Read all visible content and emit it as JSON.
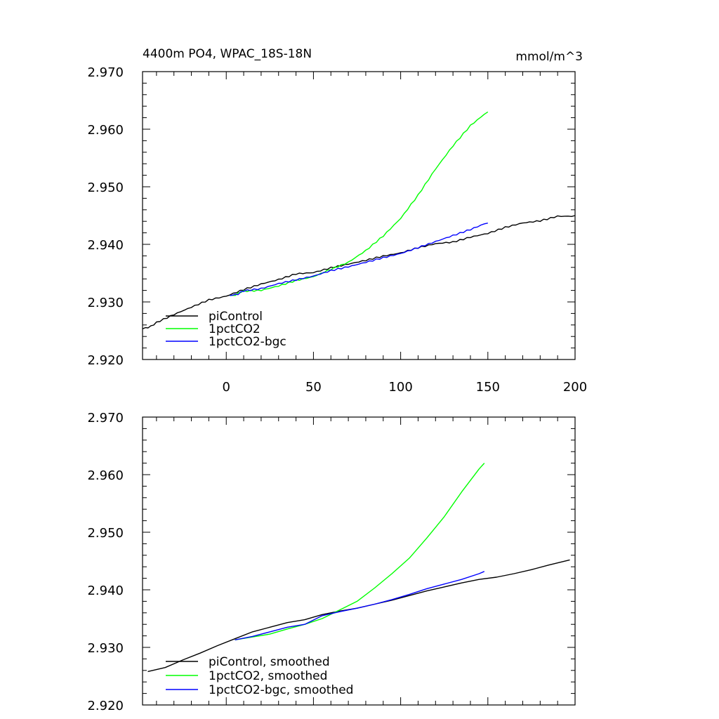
{
  "chart_data": [
    {
      "type": "line",
      "title": "4400m PO4, WPAC_18S-18N",
      "units": "mmol/m^3",
      "xlim": [
        -48,
        200
      ],
      "ylim": [
        2.92,
        2.97
      ],
      "xticks": [
        0,
        50,
        100,
        150,
        200
      ],
      "xtick_labels": [
        "0",
        "50",
        "100",
        "150",
        "200"
      ],
      "yticks": [
        2.92,
        2.93,
        2.94,
        2.95,
        2.96,
        2.97
      ],
      "ytick_labels": [
        "2.920",
        "2.930",
        "2.940",
        "2.950",
        "2.960",
        "2.970"
      ],
      "grid": false,
      "legend": "bottom-left",
      "series": [
        {
          "name": "piControl",
          "color": "#000000",
          "x": [
            -48,
            -40,
            -30,
            -20,
            -10,
            0,
            10,
            20,
            30,
            40,
            50,
            60,
            70,
            80,
            90,
            100,
            110,
            120,
            130,
            140,
            150,
            160,
            170,
            180,
            190,
            200
          ],
          "y": [
            2.9252,
            2.9263,
            2.9277,
            2.929,
            2.9303,
            2.931,
            2.9322,
            2.9332,
            2.934,
            2.935,
            2.9352,
            2.936,
            2.9366,
            2.9372,
            2.9379,
            2.9384,
            2.9393,
            2.94,
            2.9403,
            2.9412,
            2.9419,
            2.943,
            2.9438,
            2.9442,
            2.945,
            2.945
          ]
        },
        {
          "name": "1pctCO2",
          "color": "#00ff00",
          "x": [
            2,
            10,
            20,
            30,
            40,
            50,
            60,
            70,
            80,
            90,
            100,
            110,
            120,
            130,
            140,
            150
          ],
          "y": [
            2.931,
            2.9318,
            2.932,
            2.9328,
            2.9338,
            2.9345,
            2.9358,
            2.937,
            2.939,
            2.9415,
            2.9445,
            2.9485,
            2.953,
            2.957,
            2.9605,
            2.963
          ]
        },
        {
          "name": "1pctCO2-bgc",
          "color": "#0000ff",
          "x": [
            2,
            10,
            20,
            30,
            40,
            50,
            60,
            70,
            80,
            90,
            100,
            110,
            120,
            130,
            140,
            150
          ],
          "y": [
            2.931,
            2.9318,
            2.9322,
            2.9331,
            2.9338,
            2.9345,
            2.9355,
            2.9362,
            2.937,
            2.9378,
            2.9385,
            2.9395,
            2.9405,
            2.9415,
            2.9425,
            2.9437
          ]
        }
      ]
    },
    {
      "type": "line",
      "xlim": [
        -48,
        200
      ],
      "ylim": [
        2.92,
        2.97
      ],
      "xticks": [
        0,
        50,
        100,
        150,
        200
      ],
      "yticks": [
        2.92,
        2.93,
        2.94,
        2.95,
        2.96,
        2.97
      ],
      "ytick_labels": [
        "2.920",
        "2.930",
        "2.940",
        "2.950",
        "2.960",
        "2.970"
      ],
      "grid": false,
      "legend": "bottom-left",
      "series": [
        {
          "name": "piControl, smoothed",
          "color": "#000000",
          "x": [
            -45,
            -35,
            -25,
            -15,
            -5,
            5,
            15,
            25,
            35,
            45,
            55,
            65,
            75,
            85,
            95,
            105,
            115,
            125,
            135,
            145,
            155,
            165,
            175,
            185,
            197
          ],
          "y": [
            2.9258,
            2.9265,
            2.9278,
            2.929,
            2.9303,
            2.9315,
            2.9327,
            2.9335,
            2.9343,
            2.9348,
            2.9357,
            2.9363,
            2.9368,
            2.9375,
            2.9382,
            2.939,
            2.9398,
            2.9405,
            2.9412,
            2.9418,
            2.9422,
            2.9428,
            2.9435,
            2.9443,
            2.9452
          ]
        },
        {
          "name": "1pctCO2, smoothed",
          "color": "#00ff00",
          "x": [
            5,
            15,
            25,
            35,
            45,
            55,
            65,
            75,
            85,
            95,
            105,
            115,
            125,
            135,
            145,
            148
          ],
          "y": [
            2.9313,
            2.9318,
            2.9323,
            2.9332,
            2.934,
            2.935,
            2.9365,
            2.938,
            2.9403,
            2.9428,
            2.9455,
            2.949,
            2.9527,
            2.957,
            2.961,
            2.962
          ]
        },
        {
          "name": "1pctCO2-bgc, smoothed",
          "color": "#0000ff",
          "x": [
            5,
            15,
            25,
            35,
            45,
            55,
            65,
            75,
            85,
            95,
            105,
            115,
            125,
            135,
            145,
            148
          ],
          "y": [
            2.9313,
            2.9319,
            2.9327,
            2.9335,
            2.934,
            2.9355,
            2.9362,
            2.9368,
            2.9375,
            2.9383,
            2.9392,
            2.9402,
            2.941,
            2.9418,
            2.9428,
            2.9432
          ]
        }
      ]
    }
  ]
}
